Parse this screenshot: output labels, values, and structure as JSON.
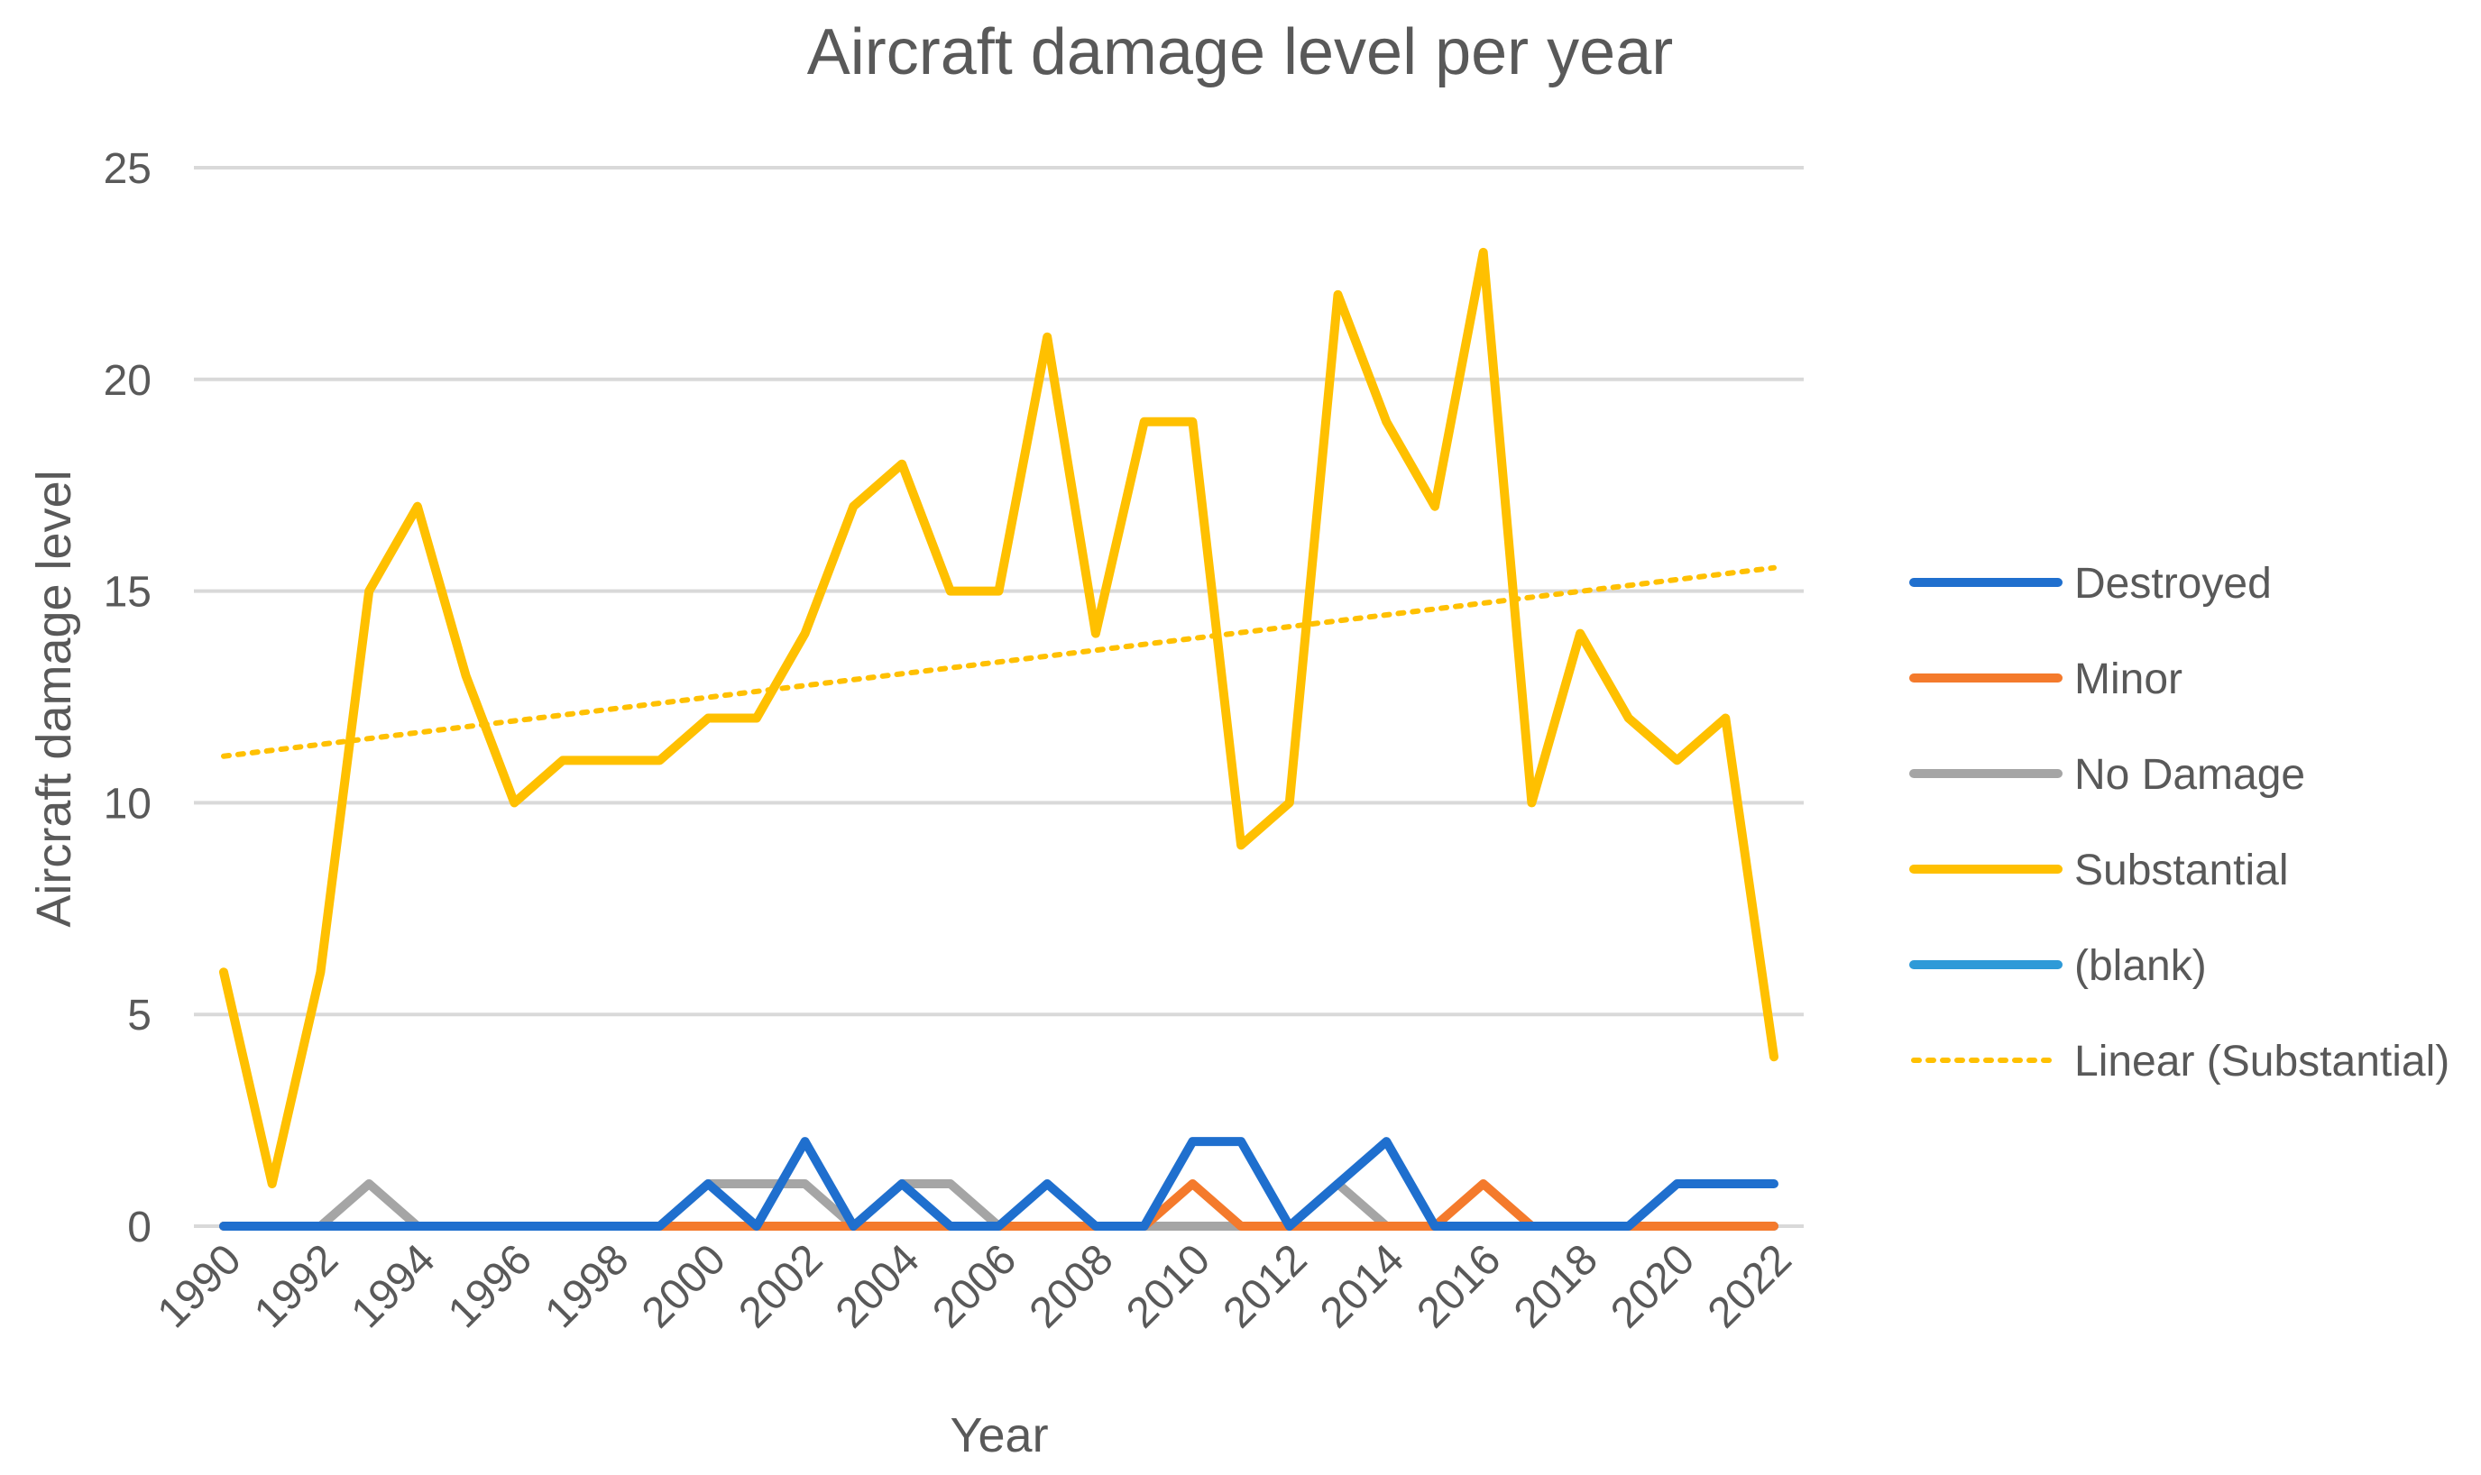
{
  "chart_data": {
    "type": "line",
    "title": "Aircraft damage level per year",
    "xlabel": "Year",
    "ylabel": "Aircraft damage level",
    "ylim": [
      0,
      25
    ],
    "yticks": [
      0,
      5,
      10,
      15,
      20,
      25
    ],
    "x": [
      1990,
      1991,
      1992,
      1993,
      1994,
      1995,
      1996,
      1997,
      1998,
      1999,
      2000,
      2001,
      2002,
      2003,
      2004,
      2005,
      2006,
      2007,
      2008,
      2009,
      2010,
      2011,
      2012,
      2013,
      2014,
      2015,
      2016,
      2017,
      2018,
      2019,
      2020,
      2021,
      2022
    ],
    "xtick_labels": [
      "1990",
      "1992",
      "1994",
      "1996",
      "1998",
      "2000",
      "2002",
      "2004",
      "2006",
      "2008",
      "2010",
      "2012",
      "2014",
      "2016",
      "2018",
      "2020",
      "2022"
    ],
    "grid": true,
    "legend_position": "right",
    "series": [
      {
        "name": "Destroyed",
        "color": "#1f6fce",
        "values": [
          0,
          0,
          0,
          0,
          0,
          0,
          0,
          0,
          0,
          0,
          1,
          0,
          2,
          0,
          1,
          0,
          0,
          1,
          0,
          0,
          2,
          2,
          0,
          1,
          2,
          0,
          0,
          0,
          0,
          0,
          1,
          1,
          1
        ]
      },
      {
        "name": "Minor",
        "color": "#f47a2c",
        "values": [
          0,
          0,
          0,
          0,
          0,
          0,
          0,
          0,
          0,
          0,
          0,
          0,
          0,
          0,
          0,
          0,
          0,
          0,
          0,
          0,
          1,
          0,
          0,
          0,
          0,
          0,
          1,
          0,
          0,
          0,
          0,
          0,
          0
        ]
      },
      {
        "name": "No Damage",
        "color": "#a5a5a5",
        "values": [
          0,
          0,
          0,
          1,
          0,
          0,
          0,
          0,
          0,
          0,
          1,
          1,
          1,
          0,
          1,
          1,
          0,
          0,
          0,
          0,
          0,
          0,
          0,
          1,
          0,
          0,
          0,
          0,
          0,
          0,
          0,
          0,
          0
        ]
      },
      {
        "name": "Substantial",
        "color": "#ffc000",
        "values": [
          6,
          1,
          6,
          15,
          17,
          13,
          10,
          11,
          11,
          11,
          12,
          12,
          14,
          17,
          18,
          15,
          15,
          21,
          14,
          19,
          19,
          9,
          10,
          22,
          19,
          17,
          23,
          10,
          14,
          12,
          11,
          12,
          4
        ]
      },
      {
        "name": "(blank)",
        "color": "#2e9ad8",
        "values": [
          0,
          0,
          0,
          0,
          0,
          0,
          0,
          0,
          0,
          0,
          0,
          0,
          0,
          0,
          0,
          0,
          0,
          0,
          0,
          0,
          0,
          0,
          0,
          0,
          0,
          0,
          0,
          0,
          0,
          0,
          0,
          0,
          0
        ]
      }
    ],
    "trendline": {
      "name": "Linear (Substantial)",
      "color": "#ffc000",
      "style": "dotted",
      "start": [
        1990,
        11.1
      ],
      "end": [
        2022,
        15.55
      ]
    }
  }
}
